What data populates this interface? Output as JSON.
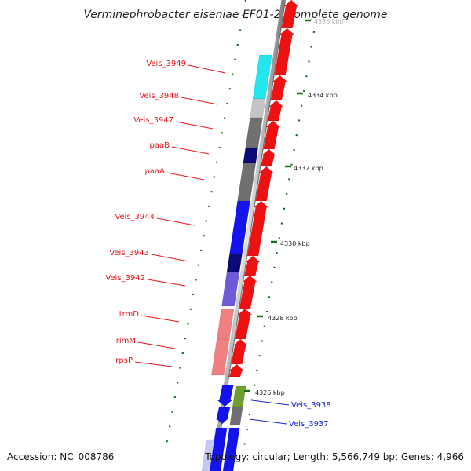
{
  "title": "Verminephrobacter eiseniae EF01-2, complete genome",
  "footer": {
    "accession": "Accession: NC_008786",
    "topology": "Topology: circular; Length: 5,566,749 bp; Genes: 4,966"
  },
  "ticks": [
    "4334 kbp",
    "4332 kbp",
    "4330 kbp",
    "4328 kbp",
    "4326 kbp"
  ],
  "faded_tick": "4336 kbp",
  "gene_labels_left": [
    "Veis_3949",
    "Veis_3948",
    "Veis_3947",
    "paaB",
    "paaA",
    "Veis_3944",
    "Veis_3943",
    "Veis_3942",
    "trmD",
    "rimM",
    "rpsP"
  ],
  "gene_labels_right": [
    "Veis_3938",
    "Veis_3937"
  ],
  "colors": {
    "forward_strand": "#ee1111",
    "label_left": "#e8151b",
    "label_right": "#1a23d6",
    "cyan": "#22e6ee",
    "light_gray": "#c4c4c4",
    "dark_gray": "#707070",
    "navy": "#0b0b78",
    "blue": "#1313ee",
    "slate_blue": "#6e5ad6",
    "light_red": "#f08080",
    "olive": "#6e9e2e",
    "light_blue": "#c8c8f4",
    "tick_green": "#157015"
  }
}
